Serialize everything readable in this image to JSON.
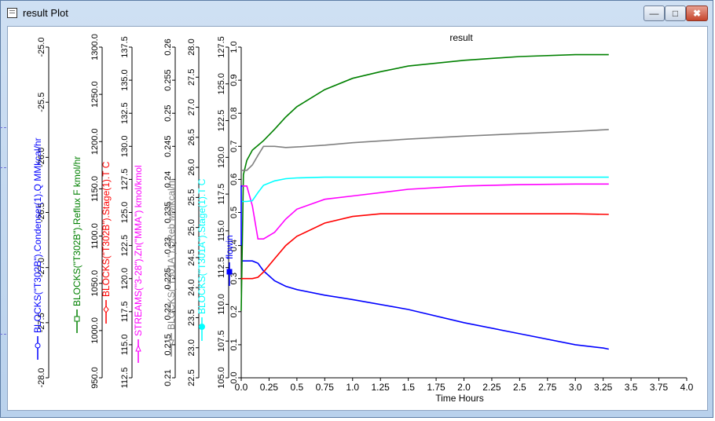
{
  "window": {
    "title": "result Plot",
    "controls": {
      "minimize": "—",
      "maximize": "□",
      "close": "✖"
    }
  },
  "colors": {
    "blue": "#0000ff",
    "green": "#008000",
    "red": "#ff0000",
    "magenta": "#ff00ff",
    "gray": "#808080",
    "cyan": "#00ffff",
    "flowin": "#0000ff"
  },
  "chart_data": {
    "type": "line",
    "title": "result",
    "xlabel": "Time Hours",
    "xlim": [
      0,
      4.0
    ],
    "xticks": [
      "0.0",
      "0.25",
      "0.5",
      "0.75",
      "1.0",
      "1.25",
      "1.5",
      "1.75",
      "2.0",
      "2.25",
      "2.5",
      "2.75",
      "3.0",
      "3.25",
      "3.5",
      "3.75",
      "4.0"
    ],
    "grid": false,
    "axes": [
      {
        "label": "BLOCKS(\"T302B\").Condenser(1).Q MMkcal/hr",
        "color": "blue",
        "marker": "circle-open",
        "ticks": [
          "-28.0",
          "-27.5",
          "-27.0",
          "-26.5",
          "-26.0",
          "-25.5",
          "-25.0"
        ]
      },
      {
        "label": "BLOCKS(\"T302B\").Reflux F kmol/hr",
        "color": "green",
        "marker": "square-open",
        "ticks": [
          "950.0",
          "1000.0",
          "1050.0",
          "1100.0",
          "1150.0",
          "1200.0",
          "1250.0",
          "1300.0"
        ]
      },
      {
        "label": "BLOCKS(\"T302B\").Stage(1).T C",
        "color": "red",
        "marker": "diamond-open",
        "ticks": [
          "112.5",
          "115.0",
          "117.5",
          "120.0",
          "122.5",
          "125.0",
          "127.5",
          "130.0",
          "132.5",
          "135.0",
          "137.5"
        ]
      },
      {
        "label": "STREAMS(\"3-28\").Zn(\"MMA\") kmol/kmol",
        "color": "magenta",
        "marker": "triangle-up-open",
        "ticks": [
          "0.21",
          "0.215",
          "0.22",
          "0.225",
          "0.23",
          "0.235",
          "0.24",
          "0.245",
          "0.25",
          "0.255",
          "0.26"
        ]
      },
      {
        "label": "BLOCKS(\"T301A\").QReb MMkcal/hr",
        "color": "gray",
        "marker": "triangle-down-open",
        "ticks": [
          "22.5",
          "23.0",
          "23.5",
          "24.0",
          "24.5",
          "25.0",
          "25.5",
          "26.0",
          "26.5",
          "27.0",
          "27.5",
          "28.0"
        ]
      },
      {
        "label": "BLOCKS(\"T301A\").Stage(1).T C",
        "color": "cyan",
        "marker": "circle-filled",
        "ticks": [
          "105.0",
          "107.5",
          "110.0",
          "112.5",
          "115.0",
          "117.5",
          "120.0",
          "122.5",
          "125.0",
          "127.5"
        ]
      },
      {
        "label": "flowin",
        "color": "flowin",
        "marker": "square-filled",
        "ticks": [
          "0.0",
          "0.1",
          "0.2",
          "0.3",
          "0.4",
          "0.5",
          "0.6",
          "0.7",
          "0.8",
          "0.9",
          "1.0"
        ]
      }
    ],
    "series": [
      {
        "axis": 0,
        "color": "blue",
        "x": [
          0,
          0.05,
          0.1,
          0.15,
          0.2,
          0.3,
          0.4,
          0.5,
          0.75,
          1.0,
          1.5,
          2.0,
          2.5,
          3.0,
          3.25,
          3.3
        ],
        "y": [
          -26.94,
          -26.94,
          -26.94,
          -26.96,
          -27.03,
          -27.12,
          -27.17,
          -27.2,
          -27.25,
          -27.29,
          -27.38,
          -27.5,
          -27.6,
          -27.7,
          -27.73,
          -27.74
        ]
      },
      {
        "axis": 1,
        "color": "green",
        "x": [
          0,
          0.02,
          0.05,
          0.1,
          0.15,
          0.2,
          0.3,
          0.4,
          0.5,
          0.75,
          1.0,
          1.25,
          1.5,
          2.0,
          2.5,
          3.0,
          3.3
        ],
        "y": [
          1021,
          1165,
          1180,
          1191,
          1196,
          1201,
          1213,
          1226,
          1237,
          1255,
          1267,
          1274,
          1280,
          1286,
          1290,
          1292,
          1292
        ]
      },
      {
        "axis": 2,
        "color": "red",
        "x": [
          0,
          0.05,
          0.1,
          0.15,
          0.2,
          0.3,
          0.4,
          0.5,
          0.75,
          1.0,
          1.25,
          1.5,
          2.0,
          2.5,
          3.0,
          3.3
        ],
        "y": [
          120.0,
          120.0,
          120.0,
          120.1,
          120.5,
          121.5,
          122.5,
          123.2,
          124.2,
          124.7,
          124.9,
          124.9,
          124.9,
          124.9,
          124.9,
          124.85
        ]
      },
      {
        "axis": 3,
        "color": "magenta",
        "x": [
          0,
          0.05,
          0.1,
          0.15,
          0.2,
          0.3,
          0.4,
          0.5,
          0.75,
          1.0,
          1.5,
          2.0,
          2.5,
          3.0,
          3.3
        ],
        "y": [
          0.239,
          0.239,
          0.236,
          0.231,
          0.231,
          0.232,
          0.234,
          0.2355,
          0.237,
          0.2375,
          0.2385,
          0.239,
          0.2392,
          0.2393,
          0.2393
        ]
      },
      {
        "axis": 4,
        "color": "gray",
        "x": [
          0,
          0.05,
          0.1,
          0.15,
          0.2,
          0.3,
          0.4,
          0.5,
          0.75,
          1.0,
          1.5,
          2.0,
          2.5,
          3.0,
          3.3
        ],
        "y": [
          25.95,
          25.95,
          26.04,
          26.2,
          26.35,
          26.35,
          26.33,
          26.34,
          26.37,
          26.41,
          26.47,
          26.52,
          26.56,
          26.6,
          26.63
        ]
      },
      {
        "axis": 5,
        "color": "cyan",
        "x": [
          0,
          0.05,
          0.1,
          0.15,
          0.2,
          0.3,
          0.4,
          0.5,
          0.75,
          1.0,
          1.5,
          2.0,
          2.5,
          3.0,
          3.3
        ],
        "y": [
          117.0,
          117.0,
          117.05,
          117.6,
          118.1,
          118.4,
          118.55,
          118.6,
          118.65,
          118.65,
          118.65,
          118.65,
          118.65,
          118.65,
          118.65
        ]
      },
      {
        "axis": 6,
        "color": "flowin",
        "x": [
          0,
          0,
          0.01
        ],
        "y": [
          0.4,
          0.58,
          0.58
        ]
      }
    ]
  }
}
